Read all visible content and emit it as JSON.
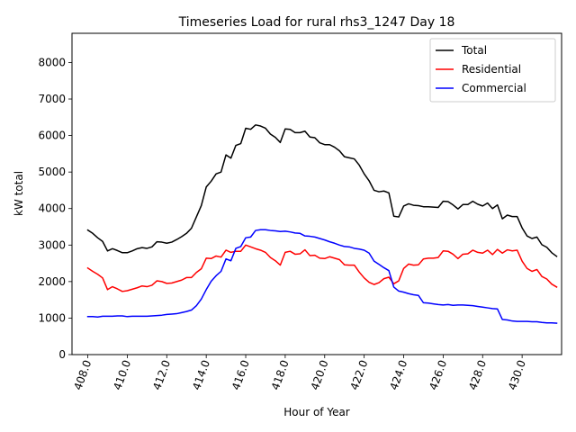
{
  "chart_data": {
    "type": "line",
    "title": "Timeseries Load for rural rhs3_1247  Day 18",
    "xlabel": "Hour of Year",
    "ylabel": "kW total",
    "xlim": [
      407.2,
      432.0
    ],
    "ylim": [
      0,
      8800
    ],
    "xticks": [
      408,
      410,
      412,
      414,
      416,
      418,
      420,
      422,
      424,
      426,
      428,
      430
    ],
    "xtick_labels": [
      "408.0",
      "410.0",
      "412.0",
      "414.0",
      "416.0",
      "418.0",
      "420.0",
      "422.0",
      "424.0",
      "426.0",
      "428.0",
      "430.0"
    ],
    "yticks": [
      0,
      1000,
      2000,
      3000,
      4000,
      5000,
      6000,
      7000,
      8000
    ],
    "ytick_labels": [
      "0",
      "1000",
      "2000",
      "3000",
      "4000",
      "5000",
      "6000",
      "7000",
      "8000"
    ],
    "grid": false,
    "legend_position": "upper right",
    "x": [
      408.0,
      408.25,
      408.5,
      408.75,
      409.0,
      409.25,
      409.5,
      409.75,
      410.0,
      410.25,
      410.5,
      410.75,
      411.0,
      411.25,
      411.5,
      411.75,
      412.0,
      412.25,
      412.5,
      412.75,
      413.0,
      413.25,
      413.5,
      413.75,
      414.0,
      414.25,
      414.5,
      414.75,
      415.0,
      415.25,
      415.5,
      415.75,
      416.0,
      416.25,
      416.5,
      416.75,
      417.0,
      417.25,
      417.5,
      417.75,
      418.0,
      418.25,
      418.5,
      418.75,
      419.0,
      419.25,
      419.5,
      419.75,
      420.0,
      420.25,
      420.5,
      420.75,
      421.0,
      421.25,
      421.5,
      421.75,
      422.0,
      422.25,
      422.5,
      422.75,
      423.0,
      423.25,
      423.5,
      423.75,
      424.0,
      424.25,
      424.5,
      424.75,
      425.0,
      425.25,
      425.5,
      425.75,
      426.0,
      426.25,
      426.5,
      426.75,
      427.0,
      427.25,
      427.5,
      427.75,
      428.0,
      428.25,
      428.5,
      428.75,
      429.0,
      429.25,
      429.5,
      429.75,
      430.0,
      430.25,
      430.5,
      430.75,
      431.0,
      431.25,
      431.5,
      431.75
    ],
    "series": [
      {
        "name": "Total",
        "color": "#000000",
        "values": [
          3410,
          3320,
          3200,
          3100,
          2840,
          2900,
          2850,
          2790,
          2790,
          2840,
          2900,
          2930,
          2910,
          2950,
          3090,
          3080,
          3050,
          3080,
          3150,
          3230,
          3320,
          3460,
          3770,
          4080,
          4590,
          4750,
          4950,
          5000,
          5470,
          5380,
          5730,
          5780,
          6200,
          6170,
          6290,
          6260,
          6200,
          6040,
          5950,
          5810,
          6180,
          6170,
          6080,
          6080,
          6120,
          5960,
          5940,
          5800,
          5750,
          5750,
          5680,
          5580,
          5420,
          5390,
          5360,
          5190,
          4950,
          4760,
          4500,
          4460,
          4480,
          4430,
          3790,
          3770,
          4070,
          4130,
          4090,
          4080,
          4050,
          4050,
          4040,
          4030,
          4200,
          4190,
          4100,
          3990,
          4110,
          4110,
          4200,
          4120,
          4070,
          4150,
          4000,
          4100,
          3720,
          3820,
          3780,
          3780,
          3470,
          3250,
          3180,
          3220,
          3010,
          2940,
          2790,
          2690
        ]
      },
      {
        "name": "Residential",
        "color": "#ff0000",
        "values": [
          2370,
          2280,
          2200,
          2100,
          1780,
          1860,
          1800,
          1730,
          1750,
          1790,
          1830,
          1880,
          1860,
          1900,
          2020,
          2000,
          1950,
          1960,
          2000,
          2040,
          2110,
          2110,
          2250,
          2350,
          2640,
          2630,
          2700,
          2670,
          2860,
          2800,
          2830,
          2830,
          3000,
          2950,
          2900,
          2860,
          2800,
          2660,
          2570,
          2450,
          2800,
          2830,
          2750,
          2760,
          2870,
          2710,
          2720,
          2640,
          2630,
          2680,
          2640,
          2600,
          2460,
          2450,
          2450,
          2260,
          2100,
          1980,
          1920,
          1970,
          2080,
          2120,
          1940,
          2020,
          2360,
          2480,
          2450,
          2460,
          2620,
          2640,
          2640,
          2660,
          2840,
          2830,
          2750,
          2630,
          2750,
          2760,
          2860,
          2800,
          2780,
          2860,
          2740,
          2880,
          2780,
          2870,
          2840,
          2860,
          2560,
          2360,
          2280,
          2330,
          2140,
          2070,
          1930,
          1850
        ]
      },
      {
        "name": "Commercial",
        "color": "#0000ff",
        "values": [
          1040,
          1040,
          1030,
          1050,
          1050,
          1050,
          1060,
          1060,
          1040,
          1050,
          1050,
          1050,
          1050,
          1060,
          1070,
          1080,
          1100,
          1110,
          1120,
          1150,
          1180,
          1220,
          1340,
          1520,
          1780,
          2010,
          2160,
          2280,
          2620,
          2570,
          2910,
          2960,
          3200,
          3220,
          3400,
          3420,
          3420,
          3400,
          3390,
          3370,
          3380,
          3360,
          3330,
          3320,
          3250,
          3240,
          3220,
          3180,
          3140,
          3090,
          3050,
          3000,
          2960,
          2950,
          2910,
          2890,
          2860,
          2780,
          2560,
          2470,
          2380,
          2300,
          1850,
          1740,
          1710,
          1670,
          1640,
          1620,
          1420,
          1410,
          1390,
          1370,
          1360,
          1370,
          1350,
          1360,
          1360,
          1350,
          1340,
          1320,
          1300,
          1280,
          1260,
          1250,
          960,
          950,
          920,
          910,
          910,
          910,
          900,
          900,
          880,
          870,
          870,
          860
        ]
      }
    ]
  }
}
